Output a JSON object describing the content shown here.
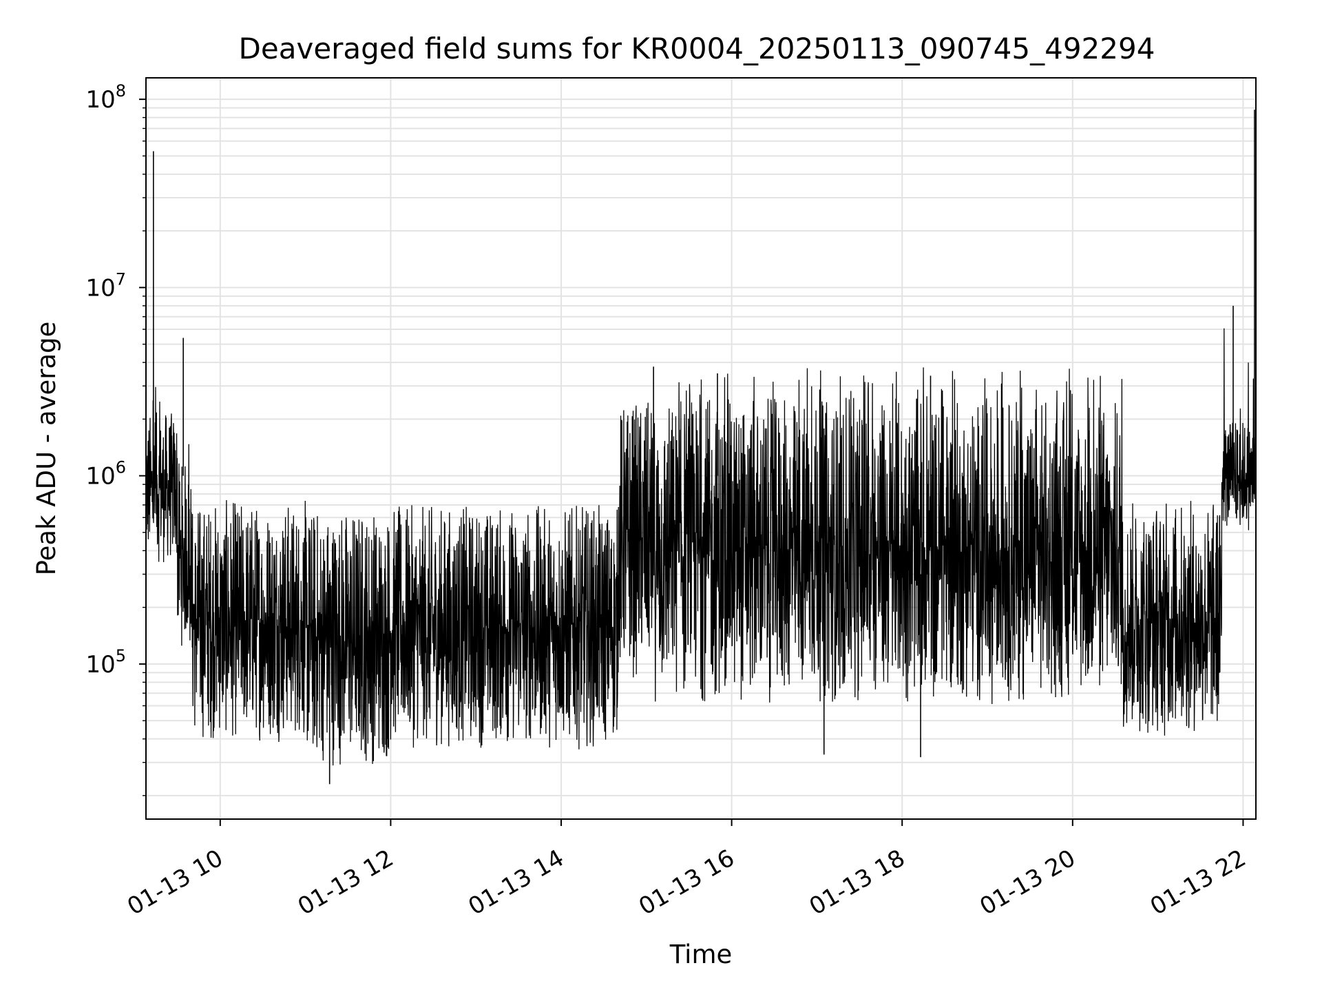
{
  "chart_data": {
    "type": "line",
    "title": "Deaveraged field sums for KR0004_20250113_090745_492294",
    "xlabel": "Time",
    "ylabel": "Peak ADU - average",
    "x_type": "datetime",
    "xlim": [
      "2025-01-13 09:07:45",
      "2025-01-13 22:09:00"
    ],
    "ylim": [
      15000,
      130000000
    ],
    "y_scale": "log",
    "grid": true,
    "legend": "none",
    "x_ticks": [
      {
        "value": "2025-01-13 10:00",
        "label": "01-13 10"
      },
      {
        "value": "2025-01-13 12:00",
        "label": "01-13 12"
      },
      {
        "value": "2025-01-13 14:00",
        "label": "01-13 14"
      },
      {
        "value": "2025-01-13 16:00",
        "label": "01-13 16"
      },
      {
        "value": "2025-01-13 18:00",
        "label": "01-13 18"
      },
      {
        "value": "2025-01-13 20:00",
        "label": "01-13 20"
      },
      {
        "value": "2025-01-13 22:00",
        "label": "01-13 22"
      }
    ],
    "y_ticks": [
      {
        "value": 100000,
        "base": "10",
        "exp": "5"
      },
      {
        "value": 1000000,
        "base": "10",
        "exp": "6"
      },
      {
        "value": 10000000,
        "base": "10",
        "exp": "7"
      },
      {
        "value": 100000000,
        "base": "10",
        "exp": "8"
      }
    ],
    "series": [
      {
        "color": "#000000",
        "segments": [
          {
            "start": "2025-01-13 09:07:45",
            "end": "2025-01-13 09:30",
            "high": 2200000,
            "low": 330000,
            "peak": 3500000
          },
          {
            "start": "2025-01-13 09:30",
            "end": "2025-01-13 09:40",
            "high": 1200000,
            "low": 120000,
            "peak": 5400000
          },
          {
            "start": "2025-01-13 09:40",
            "end": "2025-01-13 11:00",
            "high": 750000,
            "low": 38000
          },
          {
            "start": "2025-01-13 11:00",
            "end": "2025-01-13 12:00",
            "high": 700000,
            "low": 28000
          },
          {
            "start": "2025-01-13 12:00",
            "end": "2025-01-13 14:40",
            "high": 700000,
            "low": 35000
          },
          {
            "start": "2025-01-13 14:40",
            "end": "2025-01-13 15:05",
            "high": 2500000,
            "low": 80000
          },
          {
            "start": "2025-01-13 15:05",
            "end": "2025-01-13 20:35",
            "high": 2600000,
            "low": 60000,
            "peak": 3800000
          },
          {
            "start": "2025-01-13 20:35",
            "end": "2025-01-13 21:45",
            "high": 750000,
            "low": 40000
          },
          {
            "start": "2025-01-13 21:45",
            "end": "2025-01-13 22:09",
            "high": 2000000,
            "low": 500000,
            "peak": 8000000
          }
        ],
        "spikes": [
          {
            "x": "2025-01-13 09:13",
            "y": 53000000
          },
          {
            "x": "2025-01-13 09:34",
            "y": 5400000
          },
          {
            "x": "2025-01-13 11:17",
            "y": 23000
          },
          {
            "x": "2025-01-13 15:05",
            "y": 3800000
          },
          {
            "x": "2025-01-13 15:50",
            "y": 3500000
          },
          {
            "x": "2025-01-13 17:05",
            "y": 33000
          },
          {
            "x": "2025-01-13 18:13",
            "y": 32000
          },
          {
            "x": "2025-01-13 18:20",
            "y": 3400000
          },
          {
            "x": "2025-01-13 21:53",
            "y": 8000000
          },
          {
            "x": "2025-01-13 22:08",
            "y": 88000000
          }
        ]
      }
    ]
  }
}
